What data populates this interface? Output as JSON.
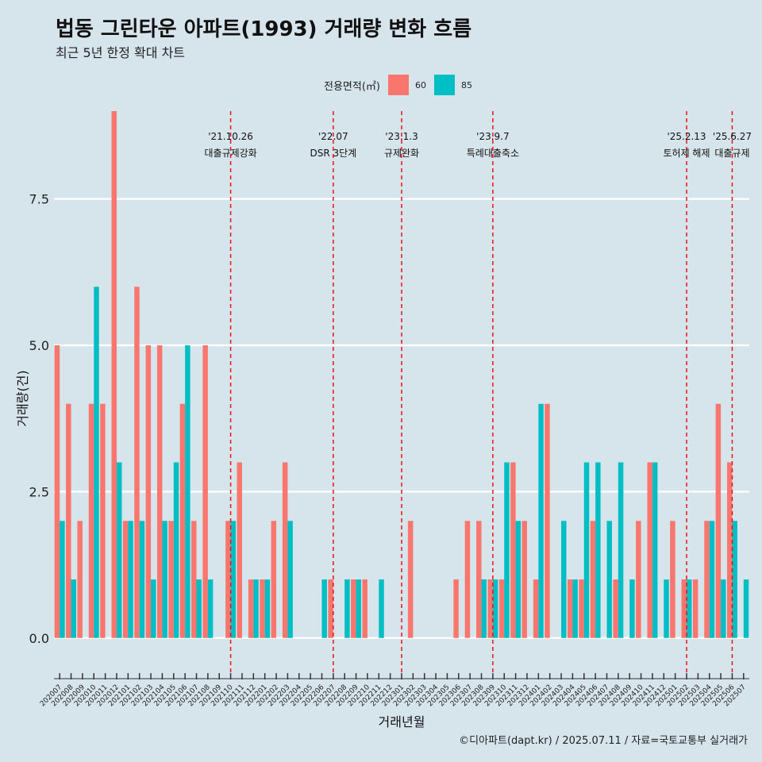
{
  "title": "법동 그린타운 아파트(1993) 거래량 변화 흐름",
  "subtitle": "최근 5년 한정 확대 차트",
  "caption": "©디아파트(dapt.kr) / 2025.07.11 / 자료=국토교통부 실거래가",
  "legend": {
    "title": "전용면적(㎡)",
    "items": [
      {
        "label": "60",
        "color": "#f8766d"
      },
      {
        "label": "85",
        "color": "#00bfc4"
      }
    ]
  },
  "chart_data": {
    "type": "bar",
    "title": "법동 그린타운 아파트(1993) 거래량 변화 흐름",
    "xlabel": "거래년월",
    "ylabel": "거래량(건)",
    "ylim": [
      -0.6,
      9
    ],
    "yticks": [
      0.0,
      2.5,
      5.0,
      7.5
    ],
    "ytick_labels": [
      "0.0",
      "2.5",
      "5.0",
      "7.5"
    ],
    "categories": [
      "202007",
      "202008",
      "202009",
      "202010",
      "202011",
      "202012",
      "202101",
      "202102",
      "202103",
      "202104",
      "202105",
      "202106",
      "202107",
      "202108",
      "202109",
      "202110",
      "202111",
      "202112",
      "202201",
      "202202",
      "202203",
      "202204",
      "202205",
      "202206",
      "202207",
      "202208",
      "202209",
      "202210",
      "202211",
      "202212",
      "202301",
      "202302",
      "202303",
      "202304",
      "202305",
      "202306",
      "202307",
      "202308",
      "202309",
      "202310",
      "202311",
      "202312",
      "202401",
      "202402",
      "202403",
      "202404",
      "202405",
      "202406",
      "202407",
      "202408",
      "202409",
      "202410",
      "202411",
      "202412",
      "202501",
      "202502",
      "202503",
      "202504",
      "202505",
      "202506",
      "202507"
    ],
    "series": [
      {
        "name": "60",
        "color": "#f8766d",
        "values": [
          5,
          4,
          2,
          4,
          4,
          9,
          2,
          6,
          5,
          5,
          2,
          4,
          2,
          5,
          0,
          2,
          3,
          1,
          1,
          2,
          3,
          0,
          0,
          0,
          1,
          0,
          1,
          1,
          0,
          0,
          0,
          2,
          0,
          0,
          0,
          1,
          2,
          2,
          1,
          1,
          3,
          2,
          1,
          4,
          0,
          1,
          1,
          2,
          0,
          1,
          0,
          2,
          3,
          0,
          2,
          1,
          1,
          2,
          4,
          3,
          0
        ]
      },
      {
        "name": "85",
        "color": "#00bfc4",
        "values": [
          2,
          1,
          0,
          6,
          0,
          3,
          2,
          2,
          1,
          2,
          3,
          5,
          1,
          1,
          0,
          2,
          0,
          1,
          1,
          0,
          2,
          0,
          0,
          1,
          0,
          1,
          1,
          0,
          1,
          0,
          0,
          0,
          0,
          0,
          0,
          0,
          0,
          1,
          1,
          3,
          2,
          0,
          4,
          0,
          2,
          1,
          3,
          3,
          2,
          3,
          1,
          0,
          3,
          1,
          0,
          1,
          0,
          2,
          1,
          2,
          1
        ]
      }
    ],
    "event_lines": [
      {
        "category": "202110",
        "date": "'21.10.26",
        "label": "대출규제강화"
      },
      {
        "category": "202207",
        "date": "'22.07",
        "label": "DSR 3단계"
      },
      {
        "category": "202301",
        "date": "'23.1.3",
        "label": "규제완화"
      },
      {
        "category": "202309",
        "date": "'23.9.7",
        "label": "특례대출축소"
      },
      {
        "category": "202502",
        "date": "'25.2.13",
        "label": "토허제 해제"
      },
      {
        "category": "202506",
        "date": "'25.6.27",
        "label": "대출규제"
      }
    ]
  }
}
